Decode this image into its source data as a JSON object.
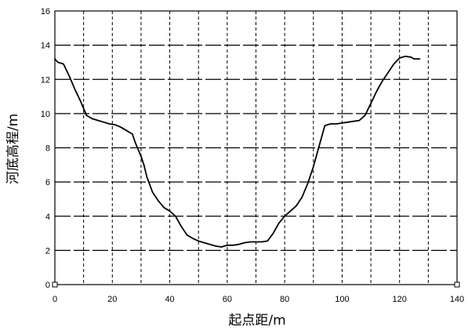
{
  "chart_data": {
    "type": "line",
    "title": "",
    "xlabel": "起点距/m",
    "ylabel": "河底高程/m",
    "xlim": [
      0,
      140
    ],
    "ylim": [
      0,
      16
    ],
    "xticks": [
      0,
      20,
      40,
      60,
      80,
      100,
      120,
      140
    ],
    "yticks": [
      0,
      2,
      4,
      6,
      8,
      10,
      12,
      14,
      16
    ],
    "x_tick_labels": [
      "0",
      "20",
      "40",
      "60",
      "80",
      "100",
      "120",
      "140"
    ],
    "y_tick_labels": [
      "0",
      "2",
      "4",
      "6",
      "8",
      "10",
      "12",
      "14",
      "16"
    ],
    "grid": true,
    "grid_style": "dashed",
    "legend": "none",
    "series": [
      {
        "color": "#000000",
        "x": [
          0,
          0.5,
          1,
          3,
          5,
          7,
          9,
          11,
          13,
          15,
          17,
          19,
          21,
          23,
          25,
          27,
          28,
          29,
          30,
          31,
          32,
          34,
          36,
          38,
          40,
          42,
          44,
          46,
          48,
          50,
          52,
          54,
          56,
          58,
          60,
          62,
          64,
          66,
          68,
          70,
          72,
          74,
          76,
          78,
          80,
          82,
          84,
          86,
          88,
          90,
          92,
          94,
          96,
          98,
          100,
          102,
          104,
          106,
          108,
          110,
          112,
          114,
          116,
          118,
          120,
          122,
          124,
          125,
          126,
          127
        ],
        "y": [
          13.2,
          13.1,
          13.0,
          12.9,
          12.2,
          11.4,
          10.7,
          9.9,
          9.7,
          9.6,
          9.5,
          9.4,
          9.35,
          9.2,
          9.0,
          8.8,
          8.3,
          7.9,
          7.5,
          7.0,
          6.3,
          5.4,
          4.9,
          4.5,
          4.3,
          4.0,
          3.4,
          2.9,
          2.7,
          2.55,
          2.45,
          2.35,
          2.25,
          2.2,
          2.3,
          2.3,
          2.35,
          2.45,
          2.5,
          2.5,
          2.5,
          2.55,
          3.0,
          3.6,
          4.0,
          4.3,
          4.6,
          5.1,
          5.9,
          6.9,
          8.1,
          9.3,
          9.4,
          9.4,
          9.45,
          9.5,
          9.55,
          9.6,
          9.9,
          10.6,
          11.3,
          11.9,
          12.4,
          12.9,
          13.25,
          13.35,
          13.3,
          13.2,
          13.2,
          13.2
        ]
      }
    ]
  }
}
